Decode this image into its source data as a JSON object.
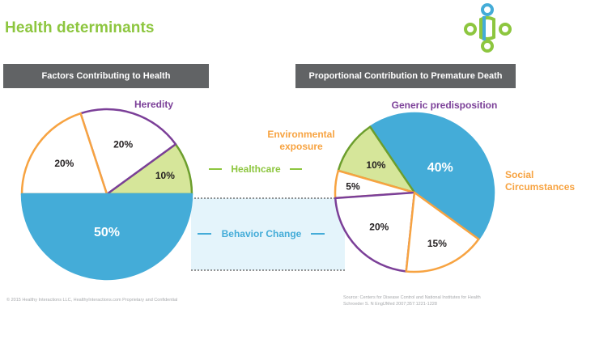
{
  "title": "Health determinants",
  "colors": {
    "title_green": "#8dc63f",
    "heredity_purple": "#7b3f98",
    "environment_orange": "#f7a341",
    "healthcare_green": "#d6e69a",
    "healthcare_border": "#6c9e2d",
    "behavior_blue": "#44acd8",
    "behavior_light": "#e4f4fb",
    "header_gray": "#616365"
  },
  "labels": {
    "heredity": "Heredity",
    "healthcare": "Healthcare",
    "behavior": "Behavior Change",
    "generic": "Generic predisposition",
    "env_1": "Environmental",
    "env_2": "exposure",
    "social_1": "Social",
    "social_2": "Circumstances"
  },
  "sources": {
    "left": "© 2015 Healthy Interactions LLC, HealthyInteractions.com Proprietary and Confidential",
    "right_1": "Source: Centers for Disease Control and National Institutes for Health",
    "right_2": "Schroeder S. N EnglJMed 2007;357:1221-1228"
  },
  "chart_data": [
    {
      "type": "pie",
      "title": "Factors Contributing to Health",
      "slices": [
        {
          "name": "Healthcare",
          "value": 10,
          "label": "10%",
          "color": "#d6e69a",
          "border": "#6c9e2d"
        },
        {
          "name": "Heredity",
          "value": 20,
          "label": "20%",
          "color": "#ffffff",
          "border": "#7b3f98"
        },
        {
          "name": "",
          "value": 20,
          "label": "20%",
          "color": "#ffffff",
          "border": "#f7a341"
        },
        {
          "name": "Behavior Change",
          "value": 50,
          "label": "50%",
          "color": "#44acd8",
          "border": "#44acd8"
        }
      ]
    },
    {
      "type": "pie",
      "title": "Proportional Contribution to Premature Death",
      "slices": [
        {
          "name": "Behavior Change",
          "value": 40,
          "label": "40%",
          "color": "#44acd8",
          "border": "#44acd8"
        },
        {
          "name": "Healthcare",
          "value": 10,
          "label": "10%",
          "color": "#d6e69a",
          "border": "#6c9e2d"
        },
        {
          "name": "Environmental exposure",
          "value": 5,
          "label": "5%",
          "color": "#ffffff",
          "border": "#f7a341"
        },
        {
          "name": "Generic predisposition",
          "value": 20,
          "label": "20%",
          "color": "#ffffff",
          "border": "#7b3f98"
        },
        {
          "name": "Social Circumstances",
          "value": 15,
          "label": "15%",
          "color": "#ffffff",
          "border": "#f7a341"
        }
      ]
    }
  ]
}
